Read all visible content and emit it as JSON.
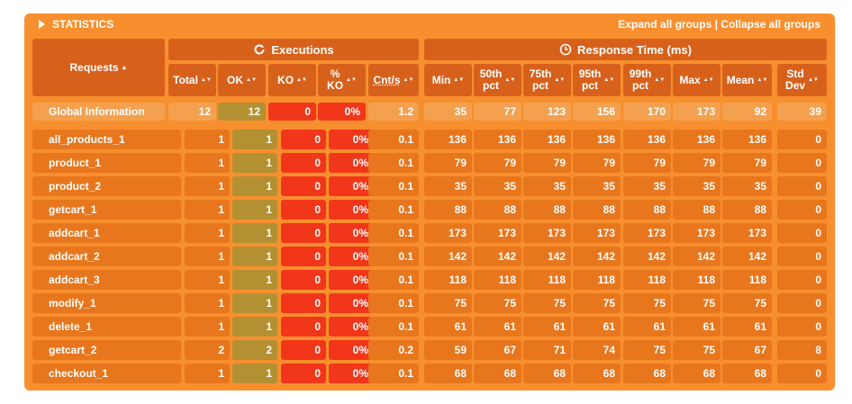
{
  "header": {
    "title": "STATISTICS",
    "expand_label": "Expand all groups",
    "separator": " | ",
    "collapse_label": "Collapse all groups"
  },
  "groups": {
    "executions": "Executions",
    "response_time": "Response Time (ms)"
  },
  "columns": {
    "requests": "Requests",
    "total": "Total",
    "ok": "OK",
    "ko": "KO",
    "ko_pct_1": "%",
    "ko_pct_2": "KO",
    "cnt": "Cnt/s",
    "min": "Min",
    "p50_1": "50th",
    "p50_2": "pct",
    "p75_1": "75th",
    "p75_2": "pct",
    "p95_1": "95th",
    "p95_2": "pct",
    "p99_1": "99th",
    "p99_2": "pct",
    "max": "Max",
    "mean": "Mean",
    "std_1": "Std",
    "std_2": "Dev"
  },
  "global": {
    "name": "Global Information",
    "total": "12",
    "ok": "12",
    "ko": "0",
    "ko_pct": "0%",
    "cnt": "1.2",
    "min": "35",
    "p50": "77",
    "p75": "123",
    "p95": "156",
    "p99": "170",
    "max": "173",
    "mean": "92",
    "std": "39"
  },
  "rows": [
    {
      "name": "all_products_1",
      "total": "1",
      "ok": "1",
      "ko": "0",
      "ko_pct": "0%",
      "cnt": "0.1",
      "min": "136",
      "p50": "136",
      "p75": "136",
      "p95": "136",
      "p99": "136",
      "max": "136",
      "mean": "136",
      "std": "0"
    },
    {
      "name": "product_1",
      "total": "1",
      "ok": "1",
      "ko": "0",
      "ko_pct": "0%",
      "cnt": "0.1",
      "min": "79",
      "p50": "79",
      "p75": "79",
      "p95": "79",
      "p99": "79",
      "max": "79",
      "mean": "79",
      "std": "0"
    },
    {
      "name": "product_2",
      "total": "1",
      "ok": "1",
      "ko": "0",
      "ko_pct": "0%",
      "cnt": "0.1",
      "min": "35",
      "p50": "35",
      "p75": "35",
      "p95": "35",
      "p99": "35",
      "max": "35",
      "mean": "35",
      "std": "0"
    },
    {
      "name": "getcart_1",
      "total": "1",
      "ok": "1",
      "ko": "0",
      "ko_pct": "0%",
      "cnt": "0.1",
      "min": "88",
      "p50": "88",
      "p75": "88",
      "p95": "88",
      "p99": "88",
      "max": "88",
      "mean": "88",
      "std": "0"
    },
    {
      "name": "addcart_1",
      "total": "1",
      "ok": "1",
      "ko": "0",
      "ko_pct": "0%",
      "cnt": "0.1",
      "min": "173",
      "p50": "173",
      "p75": "173",
      "p95": "173",
      "p99": "173",
      "max": "173",
      "mean": "173",
      "std": "0"
    },
    {
      "name": "addcart_2",
      "total": "1",
      "ok": "1",
      "ko": "0",
      "ko_pct": "0%",
      "cnt": "0.1",
      "min": "142",
      "p50": "142",
      "p75": "142",
      "p95": "142",
      "p99": "142",
      "max": "142",
      "mean": "142",
      "std": "0"
    },
    {
      "name": "addcart_3",
      "total": "1",
      "ok": "1",
      "ko": "0",
      "ko_pct": "0%",
      "cnt": "0.1",
      "min": "118",
      "p50": "118",
      "p75": "118",
      "p95": "118",
      "p99": "118",
      "max": "118",
      "mean": "118",
      "std": "0"
    },
    {
      "name": "modify_1",
      "total": "1",
      "ok": "1",
      "ko": "0",
      "ko_pct": "0%",
      "cnt": "0.1",
      "min": "75",
      "p50": "75",
      "p75": "75",
      "p95": "75",
      "p99": "75",
      "max": "75",
      "mean": "75",
      "std": "0"
    },
    {
      "name": "delete_1",
      "total": "1",
      "ok": "1",
      "ko": "0",
      "ko_pct": "0%",
      "cnt": "0.1",
      "min": "61",
      "p50": "61",
      "p75": "61",
      "p95": "61",
      "p99": "61",
      "max": "61",
      "mean": "61",
      "std": "0"
    },
    {
      "name": "getcart_2",
      "total": "2",
      "ok": "2",
      "ko": "0",
      "ko_pct": "0%",
      "cnt": "0.2",
      "min": "59",
      "p50": "67",
      "p75": "71",
      "p95": "74",
      "p99": "75",
      "max": "75",
      "mean": "67",
      "std": "8"
    },
    {
      "name": "checkout_1",
      "total": "1",
      "ok": "1",
      "ko": "0",
      "ko_pct": "0%",
      "cnt": "0.1",
      "min": "68",
      "p50": "68",
      "p75": "68",
      "p95": "68",
      "p99": "68",
      "max": "68",
      "mean": "68",
      "std": "0"
    }
  ],
  "icons": {
    "toggle": "triangle-right-icon",
    "executions": "refresh-icon",
    "response_time": "clock-icon",
    "sort": "sort-icon"
  },
  "colors": {
    "panel": "#f88f2e",
    "header": "#d7611b",
    "ok": "#b39032",
    "ko": "#f2361a"
  }
}
